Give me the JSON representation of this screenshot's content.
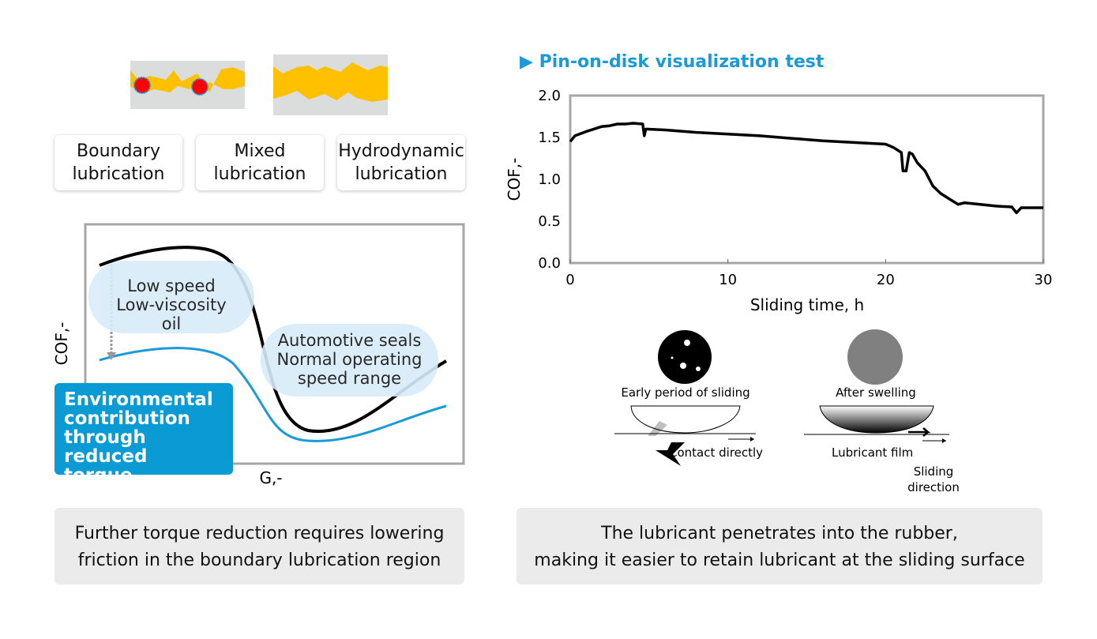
{
  "lubrication_regimes": [
    {
      "label_line1": "Boundary",
      "label_line2": "lubrication"
    },
    {
      "label_line1": "Mixed",
      "label_line2": "lubrication"
    },
    {
      "label_line1": "Hydrodynamic",
      "label_line2": "lubrication"
    }
  ],
  "stribeck": {
    "ylabel": "COF,-",
    "xlabel": "G,-",
    "bubble_low": [
      "Low speed",
      "Low-viscosity",
      "oil"
    ],
    "bubble_auto": [
      "Automotive seals",
      "Normal operating",
      "speed range"
    ],
    "highlight": [
      "Environmental",
      "contribution",
      "through reduced",
      "torque"
    ],
    "colors": {
      "original": "#000000",
      "reduced": "#1a9ad6",
      "highlight": "#0a9bd4",
      "bubble": "#d9ecfa"
    }
  },
  "left_caption": [
    "Further torque reduction requires lowering",
    "friction in the boundary lubrication region"
  ],
  "right_title": "Pin-on-disk visualization test",
  "chart_data": {
    "type": "line",
    "xlabel": "Sliding time, h",
    "ylabel": "COF,-",
    "xlim": [
      0,
      30
    ],
    "ylim": [
      0,
      2.0
    ],
    "xticks": [
      "0",
      "10",
      "20",
      "30"
    ],
    "yticks": [
      "0.0",
      "0.5",
      "1.0",
      "1.5",
      "2.0"
    ],
    "grid": false,
    "color": "#000000",
    "x": [
      0,
      0.3,
      1,
      1.5,
      2,
      2.5,
      3,
      3.5,
      4,
      4.6,
      4.7,
      4.8,
      6,
      8,
      10,
      12,
      14,
      16,
      18,
      20,
      20.5,
      21,
      21.1,
      21.3,
      21.5,
      21.7,
      22,
      22.5,
      23,
      23.5,
      24,
      24.6,
      25,
      26,
      27,
      28,
      28.3,
      28.6,
      29,
      30
    ],
    "y": [
      1.45,
      1.52,
      1.57,
      1.6,
      1.63,
      1.64,
      1.66,
      1.66,
      1.67,
      1.66,
      1.52,
      1.6,
      1.59,
      1.56,
      1.54,
      1.52,
      1.49,
      1.46,
      1.44,
      1.42,
      1.38,
      1.32,
      1.1,
      1.1,
      1.32,
      1.3,
      1.2,
      1.1,
      0.92,
      0.83,
      0.77,
      0.7,
      0.72,
      0.7,
      0.68,
      0.67,
      0.6,
      0.66,
      0.66,
      0.66
    ]
  },
  "visualization": {
    "early_label": "Early period of sliding",
    "after_label": "After swelling",
    "contact_label": "Contact directly",
    "film_label": "Lubricant film",
    "direction_label": [
      "Sliding",
      "direction"
    ]
  },
  "right_caption": [
    "The lubricant penetrates into the rubber,",
    "making it easier to retain lubricant at the sliding surface"
  ]
}
